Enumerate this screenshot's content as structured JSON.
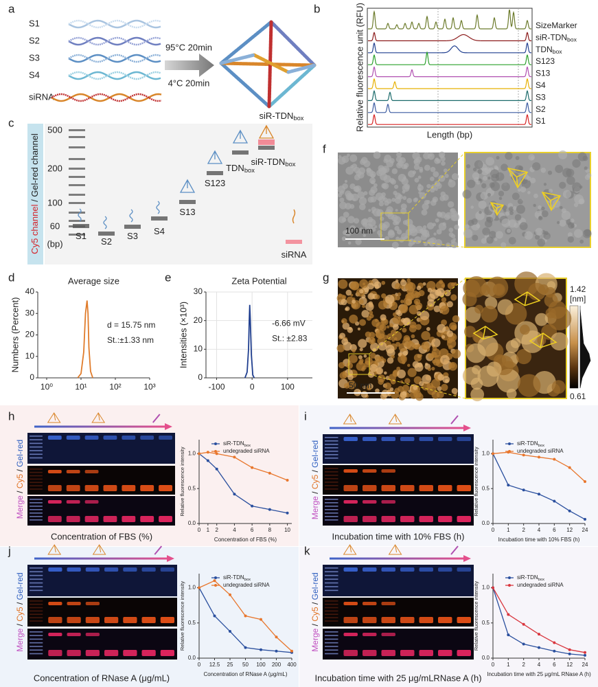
{
  "panels": {
    "a": {
      "label": "a",
      "strands": [
        "S1",
        "S2",
        "S3",
        "S4",
        "siRNA"
      ],
      "step1": "95°C  20min",
      "step2": "4°C  20min"
    },
    "b": {
      "label": "b",
      "ylabel": "Relative fluorescence unit (RFU)",
      "xlabel": "Length (bp)",
      "traces": [
        {
          "text": "SizeMarker",
          "color": "#6b7a2a"
        },
        {
          "text": "siR-TDN",
          "sub": "box",
          "color": "#8b1a1a"
        },
        {
          "text": "TDN",
          "sub": "box",
          "color": "#1f3e8f"
        },
        {
          "text": "S123",
          "color": "#2aa02a"
        },
        {
          "text": "S13",
          "color": "#b04fb0"
        },
        {
          "text": "S4",
          "color": "#e6b000"
        },
        {
          "text": "S3",
          "color": "#1a6a6a"
        },
        {
          "text": "S2",
          "color": "#3a5aa0"
        },
        {
          "text": "S1",
          "color": "#d62020"
        }
      ]
    },
    "c": {
      "label": "c",
      "channel": [
        "Cy5 channel",
        " / ",
        "Gel-red channel"
      ],
      "ladder": [
        "500",
        "200",
        "100",
        "60",
        "(bp)"
      ],
      "lanes": [
        {
          "text": "S1"
        },
        {
          "text": "S2"
        },
        {
          "text": "S3"
        },
        {
          "text": "S4"
        },
        {
          "text": "S13"
        },
        {
          "text": "S123"
        },
        {
          "text": "TDN",
          "sub": "box"
        },
        {
          "text": "siR-TDN",
          "sub": "box"
        },
        {
          "text": "siRNA"
        }
      ],
      "top": {
        "text": "siR-TDN",
        "sub": "box"
      }
    },
    "d": {
      "label": "d"
    },
    "e": {
      "label": "e"
    },
    "f": {
      "label": "f",
      "scale": "100 nm"
    },
    "g": {
      "label": "g",
      "scale": "50 nm",
      "bar_max": "1.42",
      "bar_unit": "[nm]",
      "bar_min": "0.61"
    },
    "h": {
      "label": "h",
      "gel_label": [
        "Merge",
        " / ",
        "Cy5",
        " / ",
        "Gel-red"
      ],
      "caption": "Concentration of FBS (%)"
    },
    "i": {
      "label": "i",
      "gel_label": [
        "Merge",
        " / ",
        "Cy5",
        " / ",
        "Gel-red"
      ],
      "caption": "Incubation time with 10% FBS (h)"
    },
    "j": {
      "label": "j",
      "gel_label": [
        "Merge",
        " / ",
        "Cy5",
        " / ",
        "Gel-red"
      ],
      "caption": "Concentration of RNase A (μg/mL)"
    },
    "k": {
      "label": "k",
      "gel_label": [
        "Merge",
        " / ",
        "Cy5",
        " / ",
        "Gel-red"
      ],
      "caption": "Incubation time with 25 μg/mLRNase A (h)"
    }
  },
  "chart_data": [
    {
      "type": "line",
      "title": "Average size",
      "ylabel": "Numbers (Percent)",
      "x": [
        8,
        10,
        12,
        13.5,
        15,
        16,
        17,
        19,
        22
      ],
      "values": [
        0,
        2,
        12,
        30,
        36,
        30,
        14,
        3,
        0
      ],
      "color": "#e07b2a",
      "log_x": true,
      "xlim": [
        0.55,
        1000
      ],
      "xticks": [
        {
          "value": 1,
          "label": "10⁰"
        },
        {
          "value": 10,
          "label": "10¹"
        },
        {
          "value": 100,
          "label": "10²"
        },
        {
          "value": 1000,
          "label": "10³"
        }
      ],
      "ylim": [
        0,
        40
      ],
      "yticks": [
        0,
        10,
        20,
        30,
        40
      ],
      "grid": false,
      "annotations": [
        "d = 15.75 nm",
        "St.:±1.33 nm"
      ]
    },
    {
      "type": "line",
      "title": "Zeta Potential",
      "ylabel": "Intensities (×10³)",
      "x": [
        -20,
        -14,
        -10,
        -8,
        -6.66,
        -5,
        -2,
        2,
        6
      ],
      "values": [
        0,
        2,
        10,
        20,
        25.5,
        20,
        8,
        1,
        0
      ],
      "color": "#1f3e8f",
      "xlim": [
        -130,
        170
      ],
      "xticks": [
        -100,
        0,
        100
      ],
      "ylim": [
        0,
        30
      ],
      "yticks": [
        0,
        10,
        20,
        30
      ],
      "grid": true,
      "annotations": [
        "-6.66 mV",
        "St.: ±2.83"
      ]
    },
    {
      "type": "line",
      "xlabel": "Concentration of FBS (%)",
      "ylabel": "Relative fluorescence intensity",
      "x": [
        0,
        1,
        2,
        4,
        6,
        8,
        10
      ],
      "xlim": [
        0,
        10.5
      ],
      "xticks": [
        0,
        1,
        2,
        4,
        6,
        8,
        10
      ],
      "ylim": [
        0,
        1.2
      ],
      "yticks": [
        {
          "value": 0,
          "label": "0.0"
        },
        {
          "value": 0.5,
          "label": "0.5"
        },
        {
          "value": 1,
          "label": "1.0"
        }
      ],
      "series": [
        {
          "name": "siR-TDN",
          "name_sub": "box",
          "color": "#2a4f9e",
          "values": [
            1,
            0.9,
            0.78,
            0.42,
            0.25,
            0.2,
            0.15
          ]
        },
        {
          "name": "undegraded siRNA",
          "color": "#e8762c",
          "values": [
            1,
            1.02,
            1,
            0.95,
            0.8,
            0.72,
            0.62
          ]
        }
      ]
    },
    {
      "type": "line",
      "xlabel": "Incubation time with 10% FBS (h)",
      "ylabel": "Relative fluorescence intensity",
      "categories": [
        "0",
        "1",
        "2",
        "4",
        "6",
        "12",
        "24"
      ],
      "ylim": [
        0,
        1.2
      ],
      "yticks": [
        {
          "value": 0,
          "label": "0.0"
        },
        {
          "value": 0.5,
          "label": "0.5"
        },
        {
          "value": 1,
          "label": "1.0"
        }
      ],
      "series": [
        {
          "name": "siR-TDN",
          "name_sub": "box",
          "color": "#2a4f9e",
          "values": [
            1,
            0.55,
            0.48,
            0.42,
            0.32,
            0.18,
            0.06
          ]
        },
        {
          "name": "undegraded siRNA",
          "color": "#e8762c",
          "values": [
            1,
            1.02,
            0.98,
            0.95,
            0.92,
            0.8,
            0.6
          ]
        }
      ]
    },
    {
      "type": "line",
      "xlabel": "Concentration of RNase A (μg/mL)",
      "ylabel": "Relative fluorescence intensity",
      "categories": [
        "0",
        "12.5",
        "25",
        "50",
        "100",
        "200",
        "400"
      ],
      "ylim": [
        0,
        1.2
      ],
      "yticks": [
        {
          "value": 0,
          "label": "0.0"
        },
        {
          "value": 0.5,
          "label": "0.5"
        },
        {
          "value": 1,
          "label": "1.0"
        }
      ],
      "series": [
        {
          "name": "siR-TDN",
          "name_sub": "box",
          "color": "#2a4f9e",
          "values": [
            1,
            0.6,
            0.38,
            0.15,
            0.12,
            0.1,
            0.08
          ]
        },
        {
          "name": "undegraded siRNA",
          "color": "#e8762c",
          "values": [
            1,
            1.1,
            0.9,
            0.6,
            0.55,
            0.3,
            0.1
          ]
        }
      ]
    },
    {
      "type": "line",
      "xlabel": "Incubation time with 25 μg/mL RNase A (h)",
      "ylabel": "Relative fluorescence intensity",
      "categories": [
        "0",
        "1",
        "2",
        "4",
        "6",
        "12",
        "24"
      ],
      "ylim": [
        0,
        1.2
      ],
      "yticks": [
        {
          "value": 0,
          "label": "0.0"
        },
        {
          "value": 0.5,
          "label": "0.5"
        },
        {
          "value": 1,
          "label": "1.0"
        }
      ],
      "series": [
        {
          "name": "siR-TDN",
          "name_sub": "box",
          "color": "#2a4f9e",
          "values": [
            1,
            0.33,
            0.2,
            0.15,
            0.1,
            0.06,
            0.04
          ]
        },
        {
          "name": "undegraded siRNA",
          "color": "#d9363e",
          "values": [
            1,
            0.62,
            0.48,
            0.34,
            0.22,
            0.12,
            0.08
          ]
        }
      ]
    }
  ]
}
